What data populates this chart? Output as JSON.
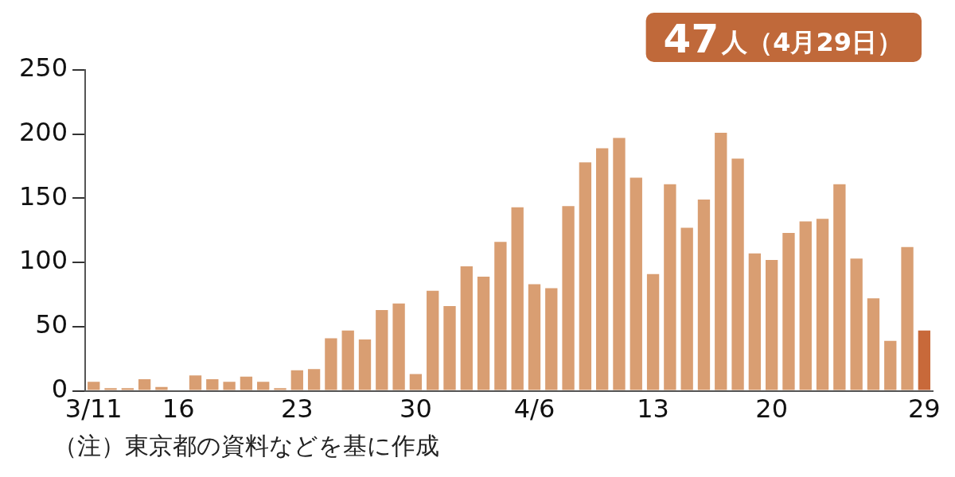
{
  "chart_data": {
    "type": "bar",
    "categories": [
      "3/11",
      null,
      null,
      null,
      null,
      "16",
      null,
      null,
      null,
      null,
      null,
      null,
      "23",
      null,
      null,
      null,
      null,
      null,
      null,
      "30",
      null,
      null,
      null,
      null,
      null,
      null,
      "4/6",
      null,
      null,
      null,
      null,
      null,
      null,
      "13",
      null,
      null,
      null,
      null,
      null,
      null,
      "20",
      null,
      null,
      null,
      null,
      null,
      null,
      null,
      null,
      "29"
    ],
    "values": [
      7,
      2,
      2,
      9,
      3,
      0,
      12,
      9,
      7,
      11,
      7,
      2,
      16,
      17,
      41,
      47,
      40,
      63,
      68,
      13,
      78,
      66,
      97,
      89,
      116,
      143,
      83,
      80,
      144,
      178,
      189,
      197,
      166,
      91,
      161,
      127,
      149,
      201,
      181,
      107,
      102,
      123,
      132,
      134,
      161,
      103,
      72,
      39,
      112,
      47
    ],
    "colors": [
      "#d99e72",
      "#d99e72",
      "#d99e72",
      "#d99e72",
      "#d99e72",
      "#d99e72",
      "#d99e72",
      "#d99e72",
      "#d99e72",
      "#d99e72",
      "#d99e72",
      "#d99e72",
      "#d99e72",
      "#d99e72",
      "#d99e72",
      "#d99e72",
      "#d99e72",
      "#d99e72",
      "#d99e72",
      "#d99e72",
      "#d99e72",
      "#d99e72",
      "#d99e72",
      "#d99e72",
      "#d99e72",
      "#d99e72",
      "#d99e72",
      "#d99e72",
      "#d99e72",
      "#d99e72",
      "#d99e72",
      "#d99e72",
      "#d99e72",
      "#d99e72",
      "#d99e72",
      "#d99e72",
      "#d99e72",
      "#d99e72",
      "#d99e72",
      "#d99e72",
      "#d99e72",
      "#d99e72",
      "#d99e72",
      "#d99e72",
      "#d99e72",
      "#d99e72",
      "#d99e72",
      "#d99e72",
      "#d99e72",
      "#c8693a"
    ],
    "ylim": [
      0,
      250
    ],
    "yticks": [
      0,
      50,
      100,
      150,
      200,
      250
    ],
    "grid": false,
    "legend": false,
    "annotations": [
      "47人（4月29日）",
      "（注）東京都の資料などを基に作成"
    ]
  }
}
